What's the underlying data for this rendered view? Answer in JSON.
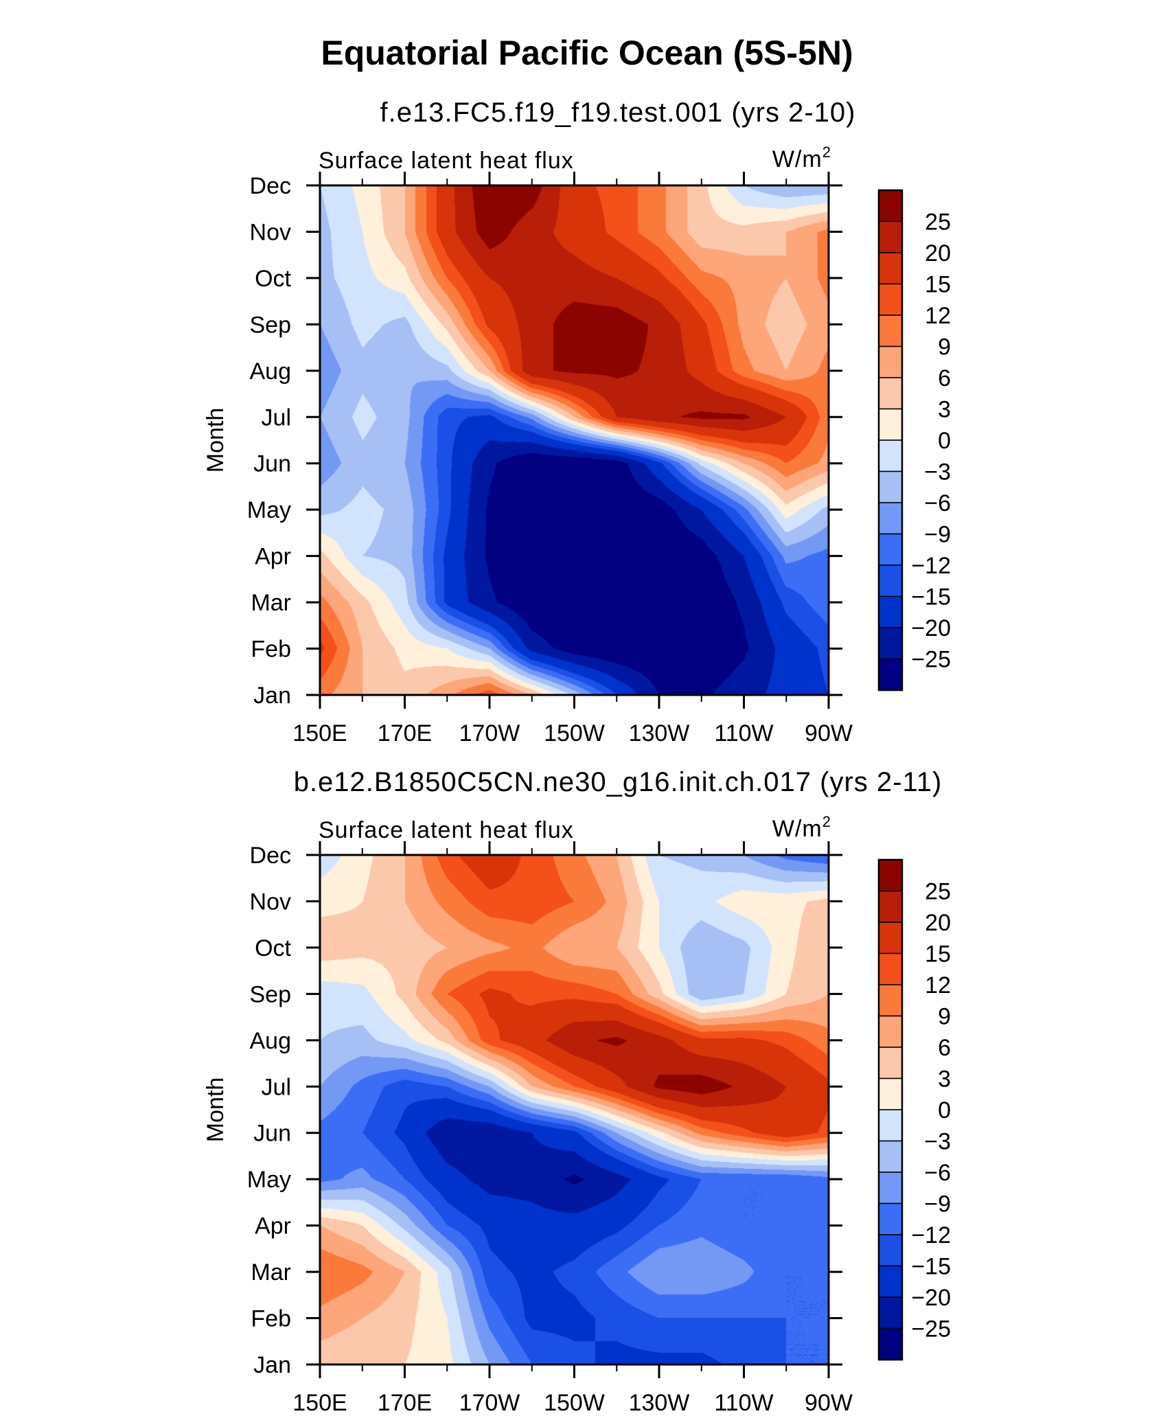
{
  "page": {
    "title": "Equatorial Pacific Ocean (5S-5N)"
  },
  "palette": [
    "#000080",
    "#0018a0",
    "#0032cc",
    "#1a50e6",
    "#3c6ef5",
    "#7499f5",
    "#a6c0f5",
    "#d2e4fb",
    "#fff0dc",
    "#fcc8ac",
    "#fca67a",
    "#fa7a3c",
    "#f4501a",
    "#d8340a",
    "#b81e08",
    "#8c0400"
  ],
  "chart_data": [
    {
      "type": "heatmap",
      "title": "f.e13.FC5.f19_f19.test.001 (yrs 2-10)",
      "variable_label": "Surface latent heat flux",
      "units": "W/m",
      "units_sup": "2",
      "ylabel": "Month",
      "xlabel": "",
      "x_tick_labels": [
        "150E",
        "170E",
        "170W",
        "150W",
        "130W",
        "110W",
        "90W"
      ],
      "x": [
        150,
        160,
        170,
        180,
        190,
        200,
        210,
        220,
        230,
        240,
        250,
        260,
        270
      ],
      "x_units": "degrees longitude east (150E to 270E = 90W)",
      "y_tick_labels": [
        "Jan",
        "Feb",
        "Mar",
        "Apr",
        "May",
        "Jun",
        "Jul",
        "Aug",
        "Sep",
        "Oct",
        "Nov",
        "Dec"
      ],
      "contour_levels": [
        -25,
        -20,
        -15,
        -12,
        -9,
        -6,
        -3,
        0,
        3,
        6,
        9,
        12,
        15,
        20,
        25
      ],
      "colorbar_labels": [
        "25",
        "20",
        "15",
        "12",
        "9",
        "6",
        "3",
        "0",
        "−3",
        "−6",
        "−9",
        "−12",
        "−15",
        "−20",
        "−25"
      ],
      "z": [
        [
          10,
          6,
          4,
          8,
          14,
          6,
          -4,
          -15,
          -25,
          -26,
          -22,
          -18,
          -15
        ],
        [
          16,
          6,
          2,
          0,
          -6,
          -22,
          -28,
          -30,
          -30,
          -30,
          -26,
          -18,
          -14
        ],
        [
          10,
          4,
          -2,
          -16,
          -24,
          -30,
          -30,
          -30,
          -30,
          -30,
          -24,
          -14,
          -10
        ],
        [
          4,
          -3,
          -4,
          -16,
          -26,
          -30,
          -30,
          -30,
          -30,
          -28,
          -20,
          -8,
          -10
        ],
        [
          -4,
          -2,
          -4,
          -14,
          -26,
          -30,
          -30,
          -30,
          -28,
          -20,
          -10,
          2,
          -4
        ],
        [
          -8,
          -4,
          -6,
          -14,
          -24,
          -30,
          -30,
          -28,
          -16,
          -2,
          6,
          12,
          8
        ],
        [
          -6,
          -2,
          -5,
          -14,
          -16,
          -8,
          6,
          20,
          24,
          26,
          26,
          20,
          10
        ],
        [
          -8,
          -4,
          -6,
          -4,
          6,
          24,
          26,
          26,
          24,
          18,
          10,
          6,
          10
        ],
        [
          -6,
          -2,
          -4,
          4,
          16,
          22,
          28,
          28,
          24,
          16,
          8,
          4,
          8
        ],
        [
          -4,
          -1,
          2,
          12,
          20,
          22,
          22,
          20,
          16,
          10,
          8,
          6,
          10
        ],
        [
          -4,
          0,
          6,
          18,
          28,
          22,
          18,
          14,
          10,
          4,
          4,
          6,
          10
        ],
        [
          -3,
          1,
          6,
          18,
          30,
          28,
          16,
          14,
          10,
          4,
          -3,
          -6,
          -6
        ]
      ]
    },
    {
      "type": "heatmap",
      "title": "b.e12.B1850C5CN.ne30_g16.init.ch.017 (yrs 2-11)",
      "variable_label": "Surface latent heat flux",
      "units": "W/m",
      "units_sup": "2",
      "ylabel": "Month",
      "xlabel": "",
      "x_tick_labels": [
        "150E",
        "170E",
        "170W",
        "150W",
        "130W",
        "110W",
        "90W"
      ],
      "x": [
        150,
        160,
        170,
        180,
        190,
        200,
        210,
        220,
        230,
        240,
        250,
        260,
        270
      ],
      "x_units": "degrees longitude east (150E to 270E = 90W)",
      "y_tick_labels": [
        "Jan",
        "Feb",
        "Mar",
        "Apr",
        "May",
        "Jun",
        "Jul",
        "Aug",
        "Sep",
        "Oct",
        "Nov",
        "Dec"
      ],
      "contour_levels": [
        -25,
        -20,
        -15,
        -12,
        -9,
        -6,
        -3,
        0,
        3,
        6,
        9,
        12,
        15,
        20,
        25
      ],
      "colorbar_labels": [
        "25",
        "20",
        "15",
        "12",
        "9",
        "6",
        "3",
        "0",
        "−3",
        "−6",
        "−9",
        "−12",
        "−15",
        "−20",
        "−25"
      ],
      "z": [
        [
          4,
          3,
          3,
          1,
          -6,
          -12,
          -14,
          -16,
          -16,
          -16,
          -14,
          -12,
          -12
        ],
        [
          8,
          6,
          4,
          0,
          -10,
          -16,
          -16,
          -14,
          -12,
          -12,
          -12,
          -12,
          -12
        ],
        [
          12,
          10,
          6,
          -2,
          -14,
          -16,
          -14,
          -10,
          -6,
          -6,
          -8,
          -12,
          -12
        ],
        [
          6,
          3,
          -4,
          -12,
          -16,
          -18,
          -18,
          -16,
          -12,
          -10,
          -12,
          -12,
          -10
        ],
        [
          -10,
          -8,
          -12,
          -18,
          -22,
          -22,
          -26,
          -22,
          -16,
          -12,
          -12,
          -12,
          -10
        ],
        [
          -10,
          -12,
          -16,
          -24,
          -24,
          -20,
          -16,
          -6,
          2,
          10,
          14,
          18,
          14
        ],
        [
          -6,
          -10,
          -14,
          -12,
          -6,
          6,
          12,
          18,
          26,
          28,
          24,
          20,
          16
        ],
        [
          -3,
          -4,
          -1,
          4,
          14,
          18,
          24,
          26,
          22,
          16,
          16,
          14,
          10
        ],
        [
          -2,
          -1,
          4,
          12,
          16,
          14,
          14,
          12,
          4,
          -6,
          -3,
          3,
          6
        ],
        [
          5,
          4,
          4,
          6,
          8,
          10,
          6,
          6,
          0,
          -6,
          -4,
          2,
          6
        ],
        [
          2,
          3,
          6,
          10,
          14,
          14,
          12,
          8,
          0,
          -1,
          2,
          2,
          4
        ],
        [
          -2,
          2,
          6,
          14,
          18,
          14,
          10,
          6,
          -3,
          -4,
          -6,
          -10,
          -12
        ]
      ]
    }
  ]
}
